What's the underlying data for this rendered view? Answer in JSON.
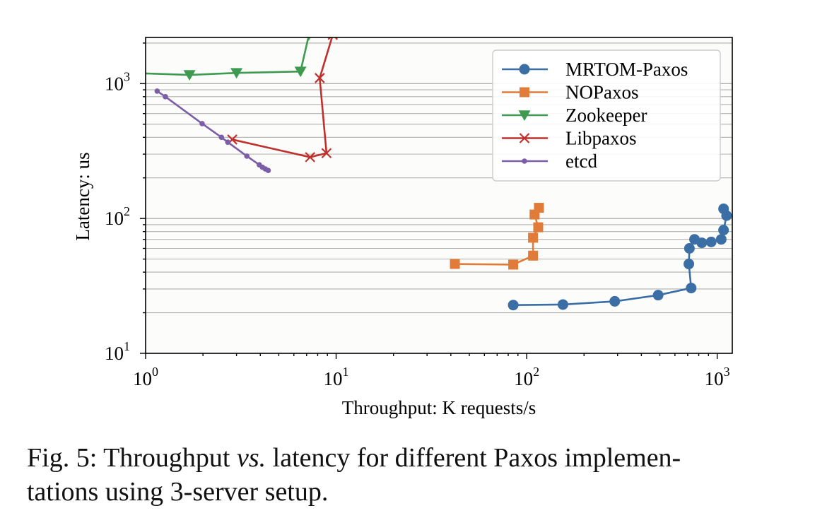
{
  "chart_data": {
    "type": "line",
    "x_scale": "log",
    "y_scale": "log",
    "xlim": [
      1,
      1200
    ],
    "ylim": [
      10,
      2200
    ],
    "xlabel": "Throughput: K requests/s",
    "ylabel": "Latency: us",
    "x_ticks": [
      {
        "value": 1,
        "base": "10",
        "exp": "0"
      },
      {
        "value": 10,
        "base": "10",
        "exp": "1"
      },
      {
        "value": 100,
        "base": "10",
        "exp": "2"
      },
      {
        "value": 1000,
        "base": "10",
        "exp": "3"
      }
    ],
    "y_ticks": [
      {
        "value": 10,
        "base": "10",
        "exp": "1"
      },
      {
        "value": 100,
        "base": "10",
        "exp": "2"
      },
      {
        "value": 1000,
        "base": "10",
        "exp": "3"
      }
    ],
    "grid": "horizontal major and minor",
    "legend_position": "top-right",
    "series": [
      {
        "name": "MRTOM-Paxos",
        "color": "#3a6ea5",
        "marker": "circle",
        "points": [
          [
            85,
            22.8
          ],
          [
            155,
            23.0
          ],
          [
            290,
            24.3
          ],
          [
            490,
            27.0
          ],
          [
            730,
            30.5
          ],
          [
            710,
            46
          ],
          [
            715,
            60
          ],
          [
            760,
            70
          ],
          [
            830,
            66
          ],
          [
            930,
            67
          ],
          [
            1050,
            70
          ],
          [
            1080,
            82
          ],
          [
            1120,
            105
          ],
          [
            1080,
            118
          ]
        ]
      },
      {
        "name": "NOPaxos",
        "color": "#e07b39",
        "marker": "square",
        "points": [
          [
            42,
            46
          ],
          [
            85,
            45.5
          ],
          [
            108,
            53
          ],
          [
            108,
            72
          ],
          [
            115,
            86
          ],
          [
            110,
            107
          ],
          [
            116,
            120
          ]
        ]
      },
      {
        "name": "Zookeeper",
        "color": "#3d9a50",
        "marker": "triangle-down",
        "points": [
          [
            0.85,
            1200
          ],
          [
            1.7,
            1160
          ],
          [
            3.0,
            1200
          ],
          [
            6.5,
            1230
          ],
          [
            7.2,
            2300
          ]
        ]
      },
      {
        "name": "Libpaxos",
        "color": "#c0302c",
        "marker": "x",
        "points": [
          [
            2.85,
            385
          ],
          [
            7.3,
            285
          ],
          [
            8.9,
            305
          ],
          [
            8.2,
            1100
          ],
          [
            9.6,
            2300
          ]
        ]
      },
      {
        "name": "etcd",
        "color": "#7b5ea7",
        "marker": "dot",
        "points": [
          [
            1.15,
            880
          ],
          [
            1.27,
            800
          ],
          [
            1.98,
            505
          ],
          [
            2.5,
            400
          ],
          [
            2.7,
            368
          ],
          [
            3.4,
            290
          ],
          [
            3.95,
            250
          ],
          [
            4.1,
            240
          ],
          [
            4.25,
            233
          ],
          [
            4.4,
            227
          ]
        ]
      }
    ]
  },
  "caption": {
    "prefix": "Fig. 5: Throughput ",
    "emph": "vs.",
    "suffix": " latency for different Paxos implementations using 3-server setup.",
    "line1_after": " latency for different Paxos implemen-",
    "line2": "tations using 3-server setup."
  }
}
